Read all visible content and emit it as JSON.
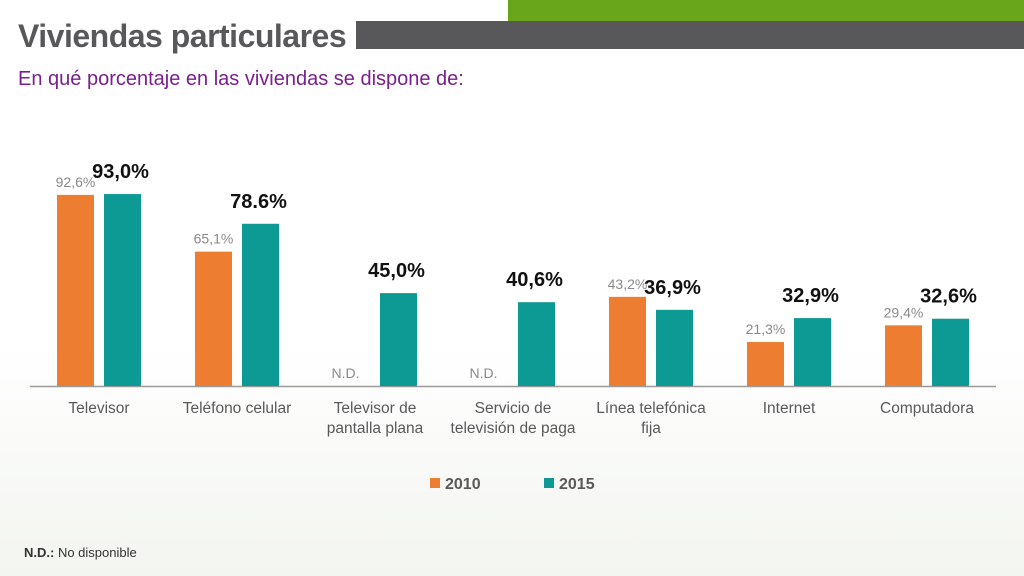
{
  "header": {
    "title": "Viviendas particulares",
    "subtitle": "En qué porcentaje en las viviendas se dispone de:"
  },
  "footnote": {
    "abbr": "N.D.:",
    "text": " No disponible"
  },
  "colors": {
    "s2010": "#ed7d31",
    "s2015": "#0e9a94",
    "title_bar": "#58585a",
    "accent_green": "#6aa61c",
    "subtitle": "#7a1f8c"
  },
  "chart_data": {
    "type": "bar",
    "categories": [
      "Televisor",
      "Teléfono celular",
      "Televisor de pantalla plana",
      "Servicio de televisión de paga",
      "Línea telefónica fija",
      "Internet",
      "Computadora"
    ],
    "category_lines": [
      [
        "Televisor"
      ],
      [
        "Teléfono celular"
      ],
      [
        "Televisor de",
        "pantalla plana"
      ],
      [
        "Servicio de",
        "televisión de paga"
      ],
      [
        "Línea telefónica",
        "fija"
      ],
      [
        "Internet"
      ],
      [
        "Computadora"
      ]
    ],
    "series": [
      {
        "name": "2010",
        "values": [
          92.6,
          65.1,
          null,
          null,
          43.2,
          21.3,
          29.4
        ],
        "labels": [
          "92,6%",
          "65,1%",
          "N.D.",
          "N.D.",
          "43,2%",
          "21,3%",
          "29,4%"
        ]
      },
      {
        "name": "2015",
        "values": [
          93.0,
          78.6,
          45.0,
          40.6,
          36.9,
          32.9,
          32.6
        ],
        "labels": [
          "93,0%",
          "78.6%",
          "45,0%",
          "40,6%",
          "36,9%",
          "32,9%",
          "32,6%"
        ]
      }
    ],
    "ylim": [
      0,
      100
    ],
    "legend_position": "bottom",
    "grid": false
  }
}
